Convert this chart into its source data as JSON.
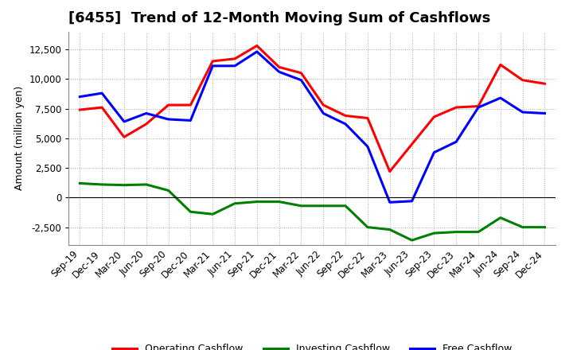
{
  "title": "[6455]  Trend of 12-Month Moving Sum of Cashflows",
  "ylabel": "Amount (million yen)",
  "x_labels": [
    "Sep-19",
    "Dec-19",
    "Mar-20",
    "Jun-20",
    "Sep-20",
    "Dec-20",
    "Mar-21",
    "Jun-21",
    "Sep-21",
    "Dec-21",
    "Mar-22",
    "Jun-22",
    "Sep-22",
    "Dec-22",
    "Mar-23",
    "Jun-23",
    "Sep-23",
    "Dec-23",
    "Mar-24",
    "Jun-24",
    "Sep-24",
    "Dec-24"
  ],
  "operating": [
    7400,
    7600,
    5100,
    6200,
    7800,
    7800,
    11500,
    11700,
    12800,
    11000,
    10500,
    7800,
    6900,
    6700,
    2200,
    4500,
    6800,
    7600,
    7700,
    11200,
    9900,
    9600
  ],
  "investing": [
    1200,
    1100,
    1050,
    1100,
    600,
    -1200,
    -1400,
    -500,
    -350,
    -350,
    -700,
    -700,
    -700,
    -2500,
    -2700,
    -3600,
    -3000,
    -2900,
    -2900,
    -1700,
    -2500,
    -2500
  ],
  "free": [
    8500,
    8800,
    6400,
    7100,
    6600,
    6500,
    11100,
    11100,
    12300,
    10600,
    9900,
    7100,
    6200,
    4300,
    -400,
    -300,
    3800,
    4700,
    7600,
    8400,
    7200,
    7100
  ],
  "operating_color": "#FF0000",
  "investing_color": "#008000",
  "free_color": "#0000FF",
  "ylim": [
    -4000,
    14000
  ],
  "yticks": [
    -2500,
    0,
    2500,
    5000,
    7500,
    10000,
    12500
  ],
  "background_color": "#FFFFFF",
  "grid_color": "#AAAAAA",
  "linewidth": 2.2,
  "title_fontsize": 13,
  "label_fontsize": 9,
  "tick_fontsize": 8.5,
  "legend_fontsize": 9
}
